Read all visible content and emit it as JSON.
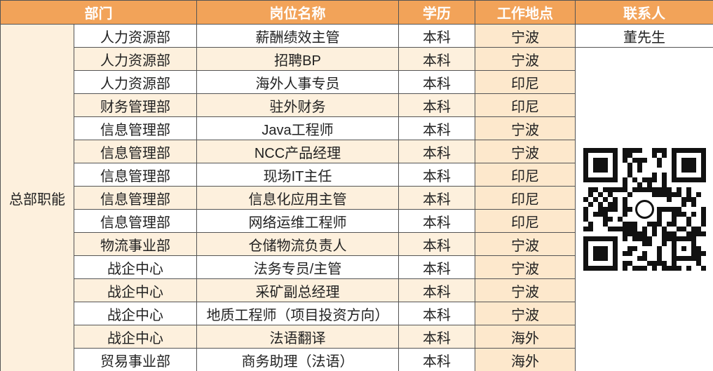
{
  "table": {
    "header": [
      "部门",
      "岗位名称",
      "学历",
      "工作地点",
      "联系人"
    ],
    "group": "总部职能",
    "contact": "董先生",
    "rows": [
      [
        "人力资源部",
        "薪酬绩效主管",
        "本科",
        "宁波"
      ],
      [
        "人力资源部",
        "招聘BP",
        "本科",
        "宁波"
      ],
      [
        "人力资源部",
        "海外人事专员",
        "本科",
        "印尼"
      ],
      [
        "财务管理部",
        "驻外财务",
        "本科",
        "印尼"
      ],
      [
        "信息管理部",
        "Java工程师",
        "本科",
        "宁波"
      ],
      [
        "信息管理部",
        "NCC产品经理",
        "本科",
        "宁波"
      ],
      [
        "信息管理部",
        "现场IT主任",
        "本科",
        "印尼"
      ],
      [
        "信息管理部",
        "信息化应用主管",
        "本科",
        "印尼"
      ],
      [
        "信息管理部",
        "网络运维工程师",
        "本科",
        "印尼"
      ],
      [
        "物流事业部",
        "仓储物流负责人",
        "本科",
        "宁波"
      ],
      [
        "战企中心",
        "法务专员/主管",
        "本科",
        "宁波"
      ],
      [
        "战企中心",
        "采矿副总经理",
        "本科",
        "宁波"
      ],
      [
        "战企中心",
        "地质工程师（项目投资方向）",
        "本科",
        "宁波"
      ],
      [
        "战企中心",
        "法语翻译",
        "本科",
        "海外"
      ],
      [
        "贸易事业部",
        "商务助理（法语）",
        "本科",
        "海外"
      ]
    ]
  }
}
